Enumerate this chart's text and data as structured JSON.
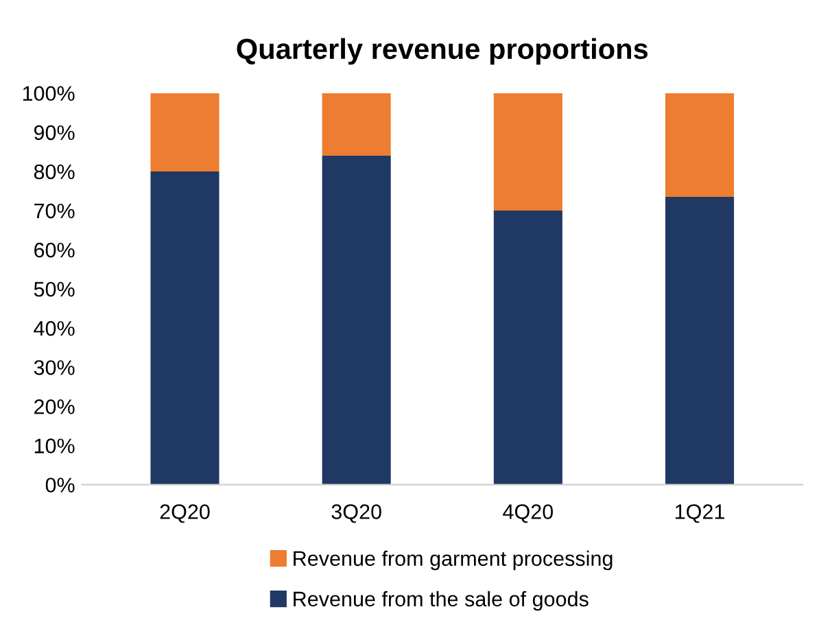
{
  "chart_data": {
    "type": "bar",
    "title": "Quarterly revenue proportions",
    "stacked": true,
    "legend": "bottom",
    "grid": false,
    "categories": [
      "2Q20",
      "3Q20",
      "4Q20",
      "1Q21"
    ],
    "series": [
      {
        "name": "Revenue from the sale of goods",
        "color": "#203864",
        "values": [
          80,
          84,
          70,
          73.5
        ]
      },
      {
        "name": "Revenue from garment processing",
        "color": "#ed7d31",
        "values": [
          20,
          16,
          30,
          26.5
        ]
      }
    ],
    "ylim": [
      0,
      100
    ],
    "yticks": [
      {
        "value": 0,
        "label": "0%"
      },
      {
        "value": 10,
        "label": "10%"
      },
      {
        "value": 20,
        "label": "20%"
      },
      {
        "value": 30,
        "label": "30%"
      },
      {
        "value": 40,
        "label": "40%"
      },
      {
        "value": 50,
        "label": "50%"
      },
      {
        "value": 60,
        "label": "60%"
      },
      {
        "value": 70,
        "label": "70%"
      },
      {
        "value": 80,
        "label": "80%"
      },
      {
        "value": 90,
        "label": "90%"
      },
      {
        "value": 100,
        "label": "100%"
      }
    ]
  }
}
